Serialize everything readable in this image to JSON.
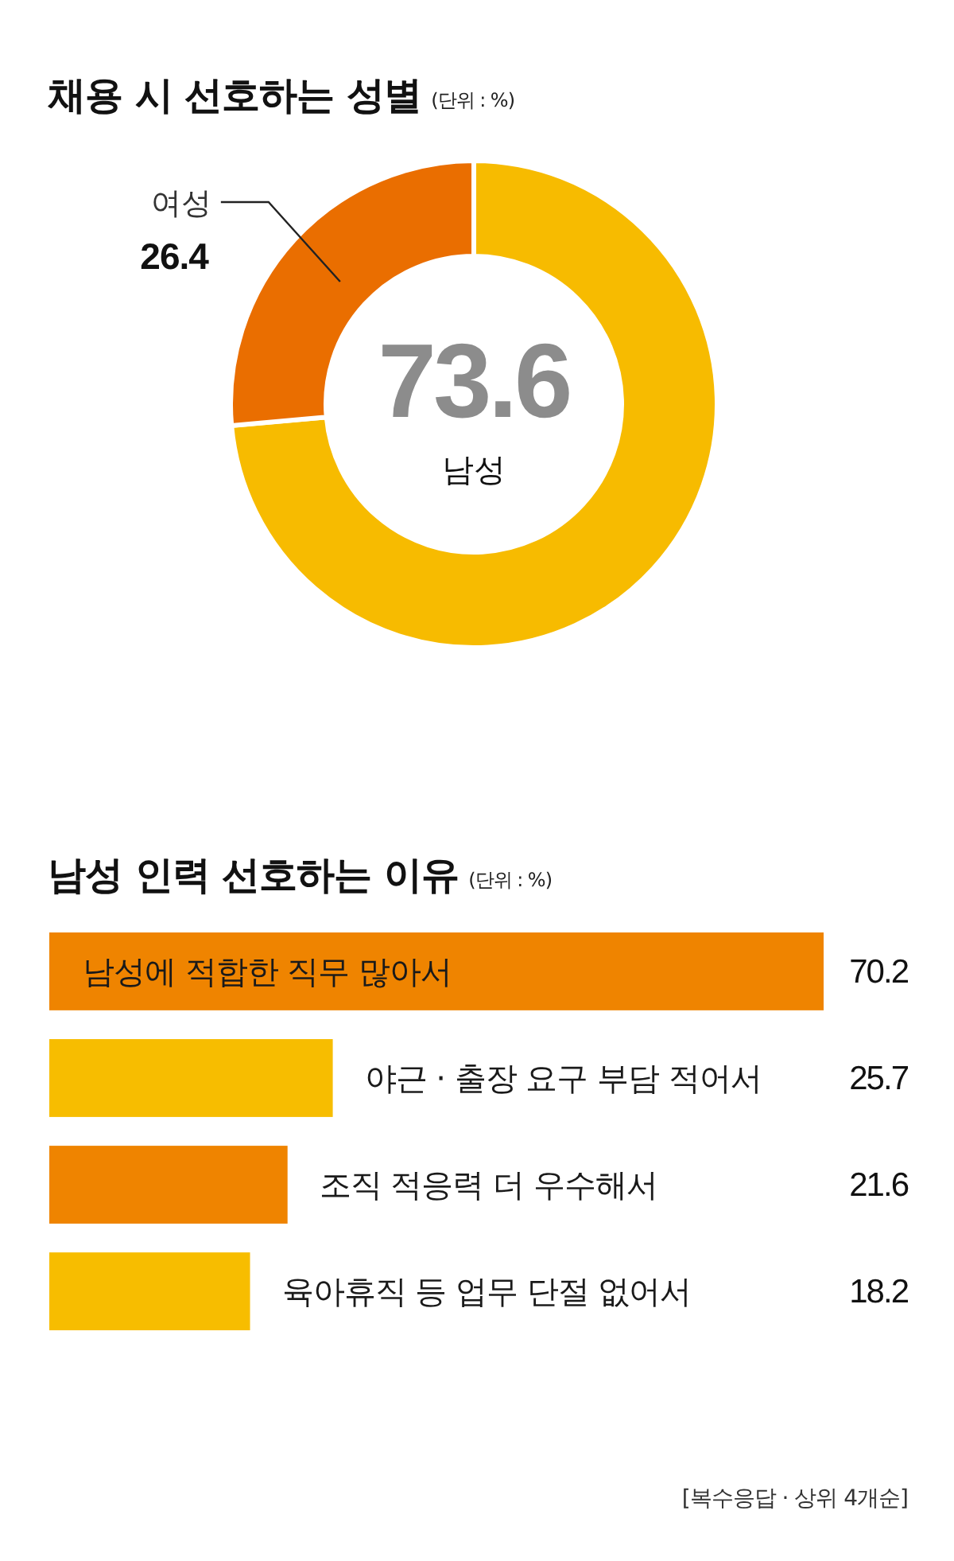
{
  "chart_data": [
    {
      "type": "donut",
      "title": "채용 시 선호하는 성별",
      "subtitle": "(단위 : %)",
      "categories": [
        "남성",
        "여성"
      ],
      "values": [
        73.6,
        26.4
      ],
      "colors": [
        "#f7bb00",
        "#ea6e00"
      ],
      "data_labels": true
    },
    {
      "type": "bar",
      "orientation": "horizontal",
      "title": "남성 인력 선호하는 이유",
      "subtitle": "(단위 : %)",
      "categories": [
        "남성에 적합한 직무 많아서",
        "야근 · 출장 요구 부담 적어서",
        "조직 적응력 더 우수해서",
        "육아휴직 등 업무 단절 없어서"
      ],
      "values": [
        70.2,
        25.7,
        21.6,
        18.2
      ],
      "colors": [
        "#ef8400",
        "#f7bd00",
        "#ef8400",
        "#f7bd00"
      ],
      "data_labels": true,
      "annotations": [
        "[복수응답 · 상위 4개순]"
      ]
    }
  ]
}
